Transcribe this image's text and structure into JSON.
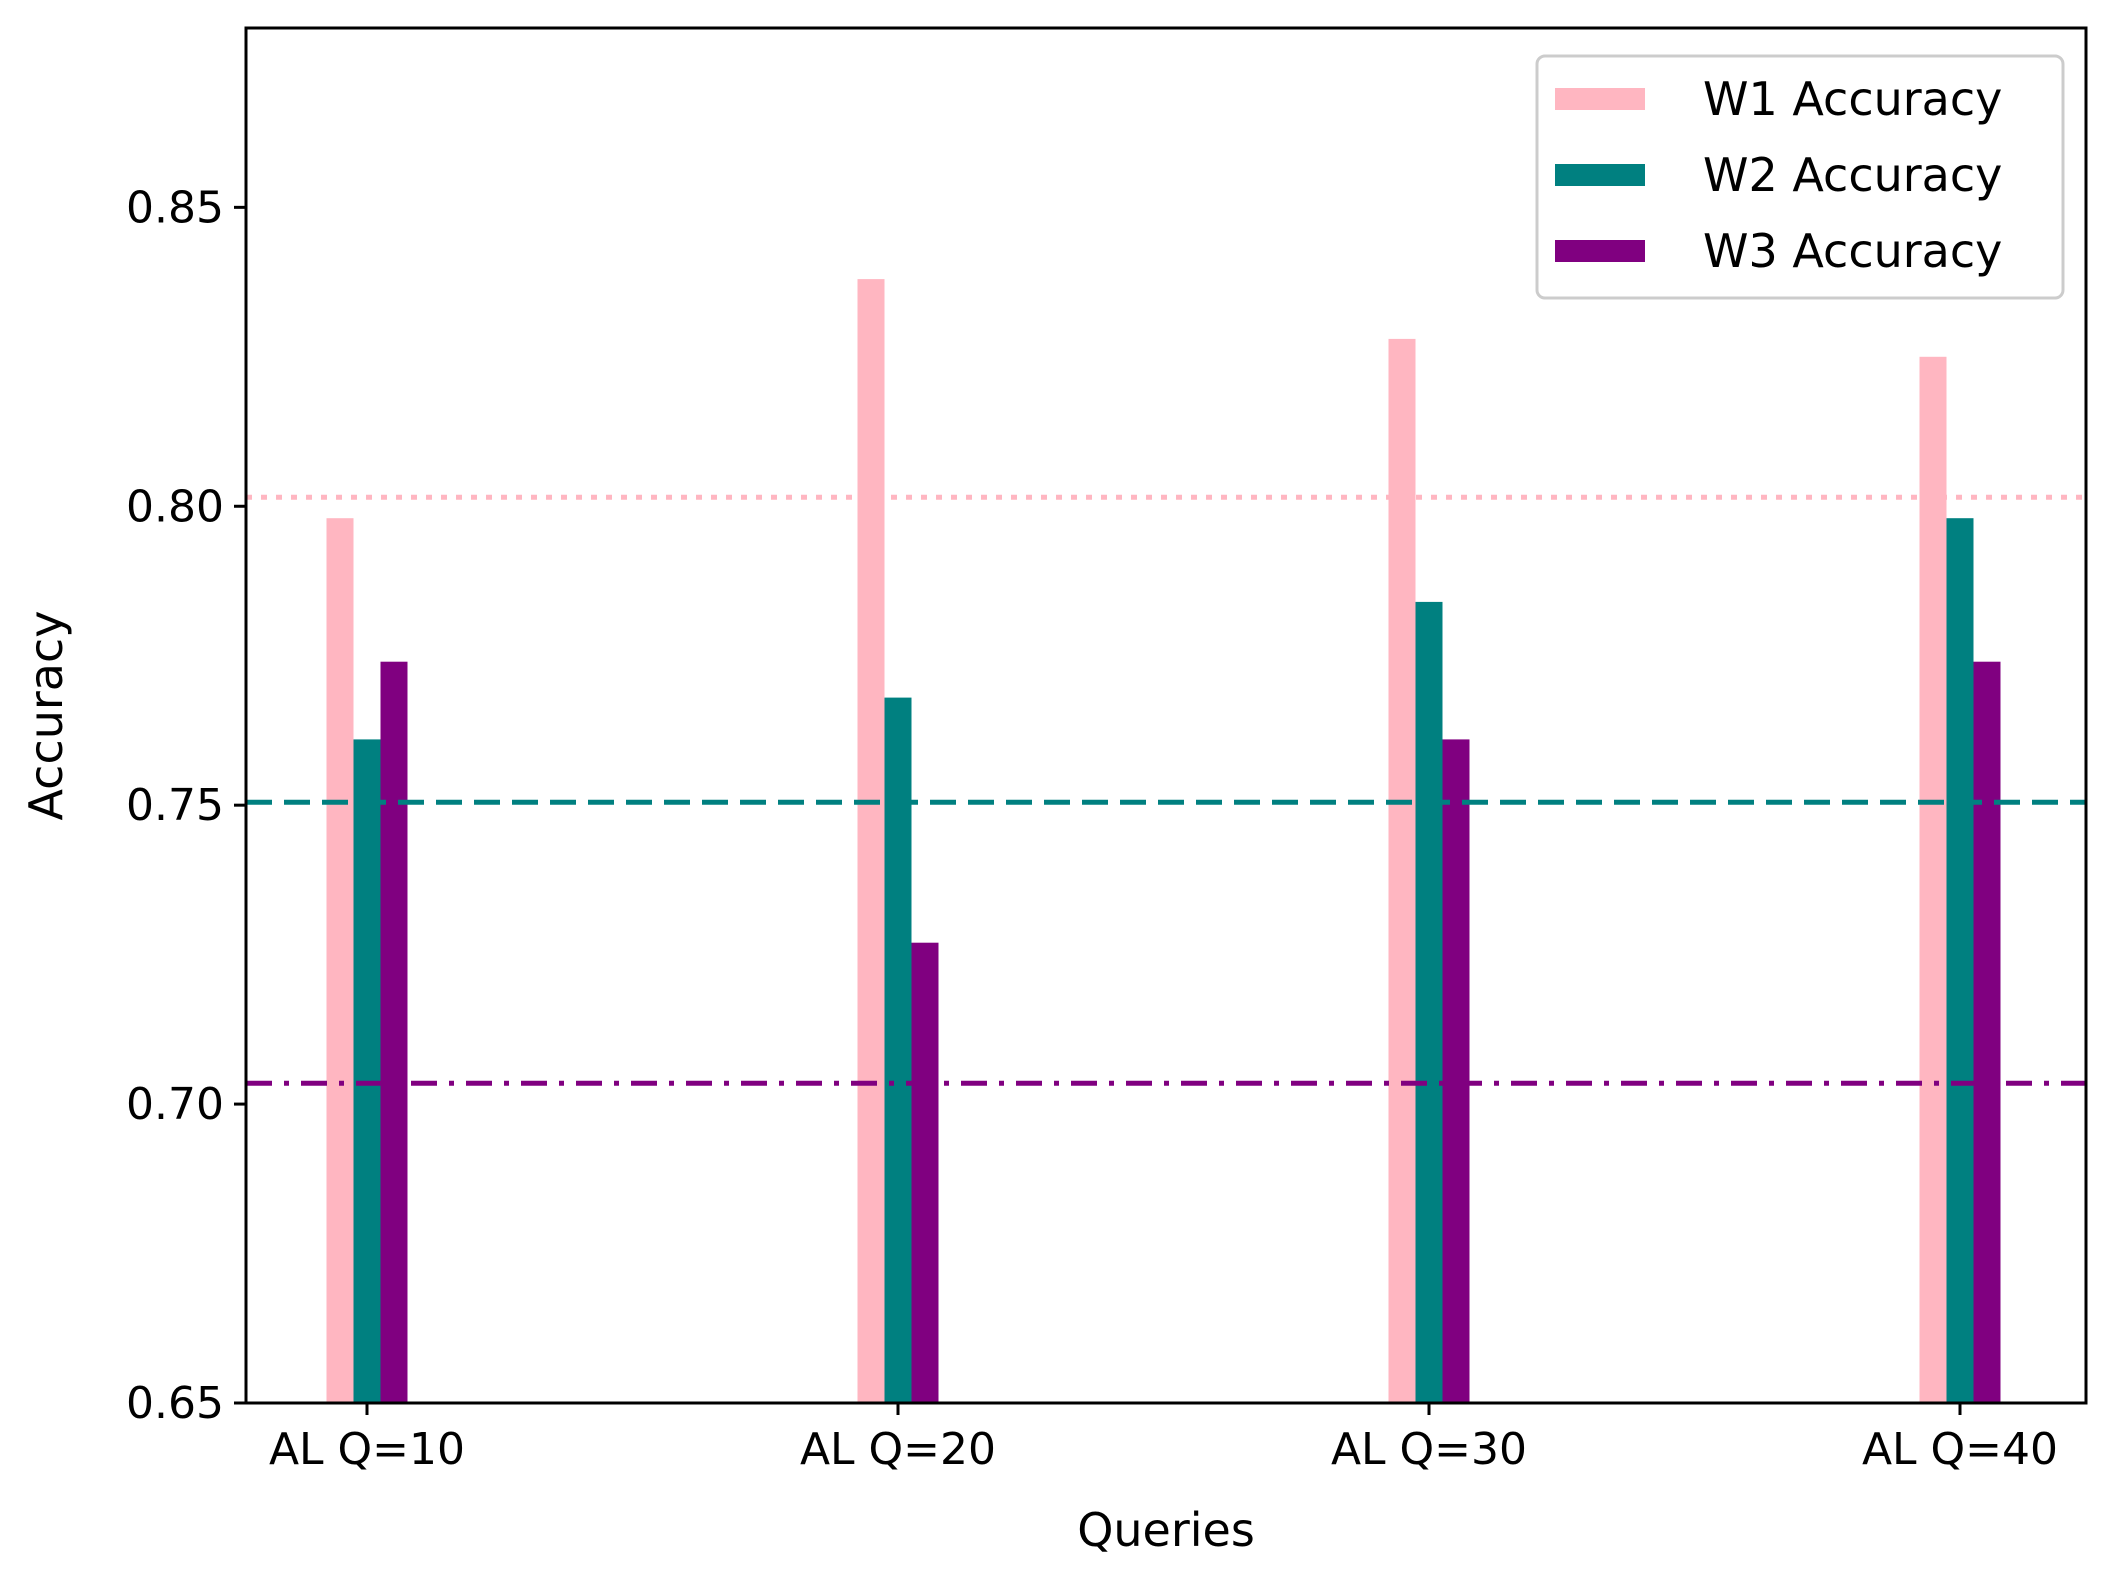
{
  "chart_data": {
    "type": "bar",
    "title": "",
    "xlabel": "Queries",
    "ylabel": "Accuracy",
    "ylim": [
      0.65,
      0.88
    ],
    "yticks": [
      "0.65",
      "0.70",
      "0.75",
      "0.80",
      "0.85"
    ],
    "categories": [
      "AL Q=10",
      "AL Q=20",
      "AL Q=30",
      "AL Q=40"
    ],
    "series": [
      {
        "name": "W1 Accuracy",
        "color": "#ffb6c1",
        "values": [
          0.798,
          0.838,
          0.828,
          0.825
        ]
      },
      {
        "name": "W2 Accuracy",
        "color": "#008080",
        "values": [
          0.761,
          0.768,
          0.784,
          0.798
        ]
      },
      {
        "name": "W3 Accuracy",
        "color": "#800080",
        "values": [
          0.774,
          0.727,
          0.761,
          0.774
        ]
      }
    ],
    "reference_lines": [
      {
        "series": "W1 Accuracy",
        "value": 0.8015,
        "style": "dotted",
        "color": "#ffb6c1"
      },
      {
        "series": "W2 Accuracy",
        "value": 0.7505,
        "style": "dashed",
        "color": "#008080"
      },
      {
        "series": "W3 Accuracy",
        "value": 0.7035,
        "style": "dashdot",
        "color": "#800080"
      }
    ],
    "legend": {
      "position": "top-right",
      "entries": [
        "W1 Accuracy",
        "W2 Accuracy",
        "W3 Accuracy"
      ]
    },
    "grid": false
  }
}
